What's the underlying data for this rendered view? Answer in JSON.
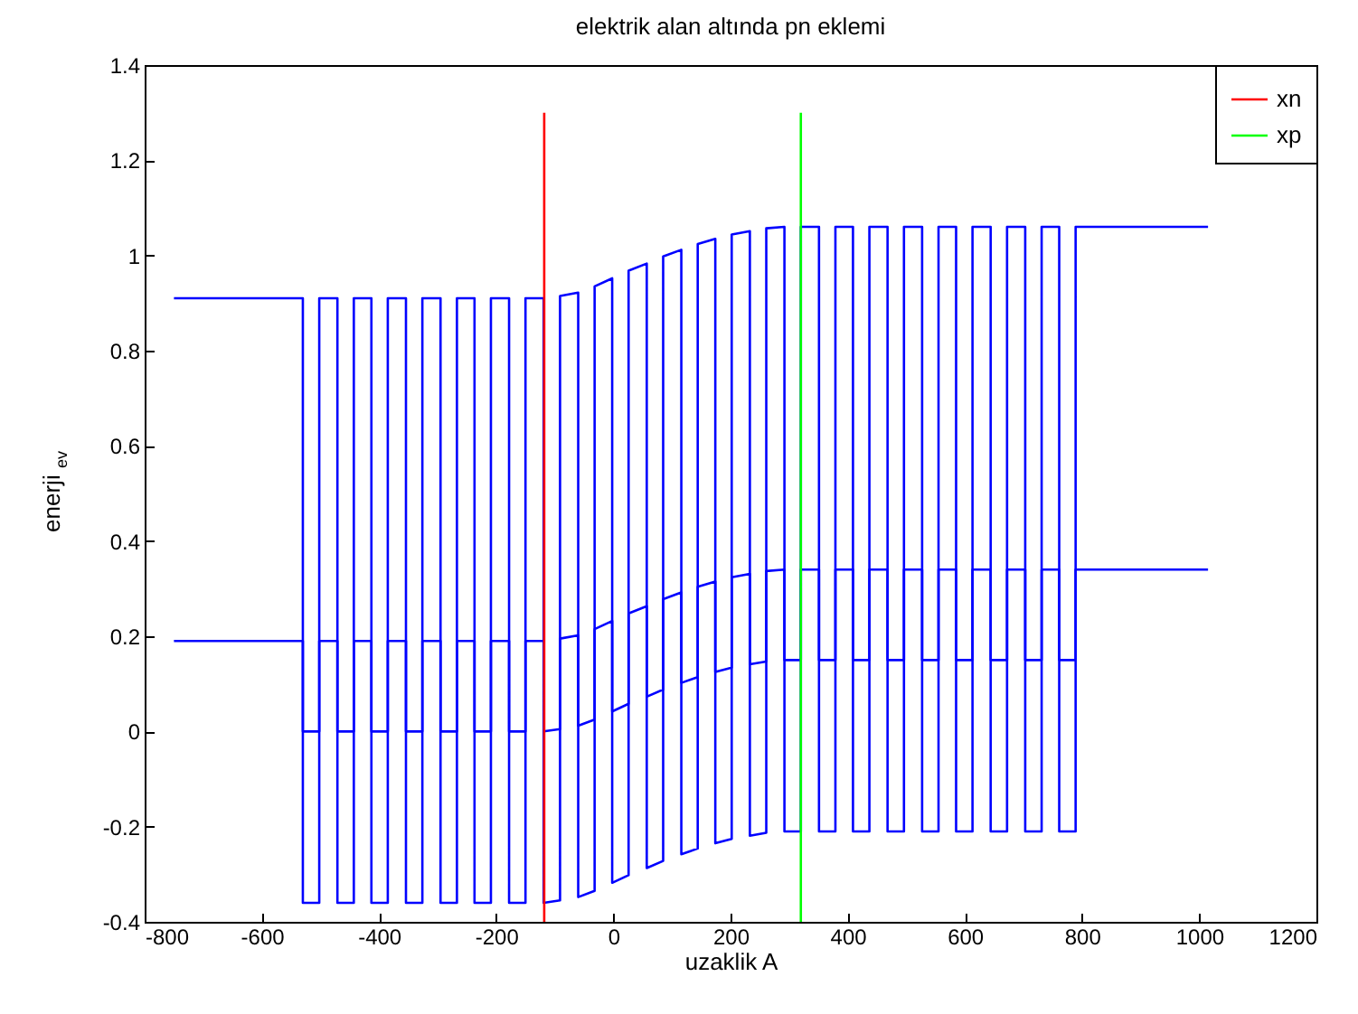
{
  "chart_data": {
    "type": "line",
    "title": "elektrik alan altında pn eklemi",
    "xlabel": "uzaklik A",
    "ylabel": "enerji $_{ev}$",
    "xlim": [
      -800,
      1200
    ],
    "xticks": [
      -800,
      -600,
      -400,
      -200,
      0,
      200,
      400,
      600,
      800,
      1000,
      1200
    ],
    "ylim": [
      -0.4,
      1.4
    ],
    "yticks": [
      -0.4,
      -0.2,
      0,
      0.2,
      0.4,
      0.6,
      0.8,
      1,
      1.2,
      1.4
    ],
    "grid": false,
    "legend": "top right",
    "line_style": "solid",
    "marker": "none",
    "series": [
      {
        "color": "#0000ff",
        "x": [
          -750,
          -530,
          -530,
          -502,
          -502,
          -471,
          -471,
          -443,
          -443,
          -413,
          -413,
          -385,
          -385,
          -354,
          -354,
          -326,
          -326,
          -295,
          -295,
          -267,
          -267,
          -237,
          -237,
          -209,
          -209,
          -178,
          -178,
          -150,
          -150,
          -119,
          -119,
          -91,
          -91,
          -60,
          -60,
          -32,
          -32,
          -2,
          -2,
          26,
          26,
          57,
          57,
          85,
          85,
          116,
          116,
          144,
          144,
          174,
          174,
          202,
          202,
          233,
          233,
          261,
          261,
          292,
          292,
          320,
          320,
          351,
          351,
          379,
          379,
          409,
          409,
          437,
          437,
          468,
          468,
          496,
          496,
          527,
          527,
          555,
          555,
          585,
          585,
          613,
          613,
          644,
          644,
          672,
          672,
          703,
          703,
          731,
          731,
          761,
          761,
          789,
          789,
          1015
        ],
        "values": [
          0.91,
          0.91,
          0,
          0,
          0.91,
          0.91,
          0,
          0,
          0.91,
          0.91,
          0,
          0,
          0.91,
          0.91,
          0,
          0,
          0.91,
          0.91,
          0,
          0,
          0.91,
          0.91,
          0,
          0,
          0.91,
          0.91,
          0,
          0,
          0.91,
          0.91,
          0,
          0.005,
          0.915,
          0.922,
          0.012,
          0.025,
          0.935,
          0.952,
          0.042,
          0.058,
          0.968,
          0.983,
          0.073,
          0.088,
          0.998,
          1.012,
          0.102,
          0.114,
          1.024,
          1.035,
          0.125,
          0.134,
          1.044,
          1.051,
          0.141,
          0.147,
          1.057,
          1.06,
          0.15,
          0.15,
          1.06,
          1.06,
          0.15,
          0.15,
          1.06,
          1.06,
          0.15,
          0.15,
          1.06,
          1.06,
          0.15,
          0.15,
          1.06,
          1.06,
          0.15,
          0.15,
          1.06,
          1.06,
          0.15,
          0.15,
          1.06,
          1.06,
          0.15,
          0.15,
          1.06,
          1.06,
          0.15,
          0.15,
          1.06,
          1.06,
          0.15,
          0.15,
          1.06,
          1.06
        ]
      },
      {
        "color": "#0000ff",
        "x": [
          -750,
          -530,
          -530,
          -502,
          -502,
          -471,
          -471,
          -443,
          -443,
          -413,
          -413,
          -385,
          -385,
          -354,
          -354,
          -326,
          -326,
          -295,
          -295,
          -267,
          -267,
          -237,
          -237,
          -209,
          -209,
          -178,
          -178,
          -150,
          -150,
          -119,
          -119,
          -91,
          -91,
          -60,
          -60,
          -32,
          -32,
          -2,
          -2,
          26,
          26,
          57,
          57,
          85,
          85,
          116,
          116,
          144,
          144,
          174,
          174,
          202,
          202,
          233,
          233,
          261,
          261,
          292,
          292,
          320,
          320,
          351,
          351,
          379,
          379,
          409,
          409,
          437,
          437,
          468,
          468,
          496,
          496,
          527,
          527,
          555,
          555,
          585,
          585,
          613,
          613,
          644,
          644,
          672,
          672,
          703,
          703,
          731,
          731,
          761,
          761,
          789,
          789,
          1015
        ],
        "values": [
          0.19,
          0.19,
          -0.36,
          -0.36,
          0.19,
          0.19,
          -0.36,
          -0.36,
          0.19,
          0.19,
          -0.36,
          -0.36,
          0.19,
          0.19,
          -0.36,
          -0.36,
          0.19,
          0.19,
          -0.36,
          -0.36,
          0.19,
          0.19,
          -0.36,
          -0.36,
          0.19,
          0.19,
          -0.36,
          -0.36,
          0.19,
          0.19,
          -0.36,
          -0.355,
          0.195,
          0.202,
          -0.348,
          -0.335,
          0.215,
          0.232,
          -0.318,
          -0.302,
          0.248,
          0.263,
          -0.287,
          -0.272,
          0.278,
          0.292,
          -0.258,
          -0.246,
          0.304,
          0.315,
          -0.235,
          -0.226,
          0.324,
          0.331,
          -0.219,
          -0.213,
          0.337,
          0.34,
          -0.21,
          -0.21,
          0.34,
          0.34,
          -0.21,
          -0.21,
          0.34,
          0.34,
          -0.21,
          -0.21,
          0.34,
          0.34,
          -0.21,
          -0.21,
          0.34,
          0.34,
          -0.21,
          -0.21,
          0.34,
          0.34,
          -0.21,
          -0.21,
          0.34,
          0.34,
          -0.21,
          -0.21,
          0.34,
          0.34,
          -0.21,
          -0.21,
          0.34,
          0.34,
          -0.21,
          -0.21,
          0.34,
          0.34
        ]
      },
      {
        "name": "xn",
        "color": "#ff0000",
        "x": [
          -118,
          -118
        ],
        "values": [
          -0.4,
          1.3
        ]
      },
      {
        "name": "xp",
        "color": "#00ff00",
        "x": [
          320,
          320
        ],
        "values": [
          -0.4,
          1.3
        ]
      }
    ]
  }
}
